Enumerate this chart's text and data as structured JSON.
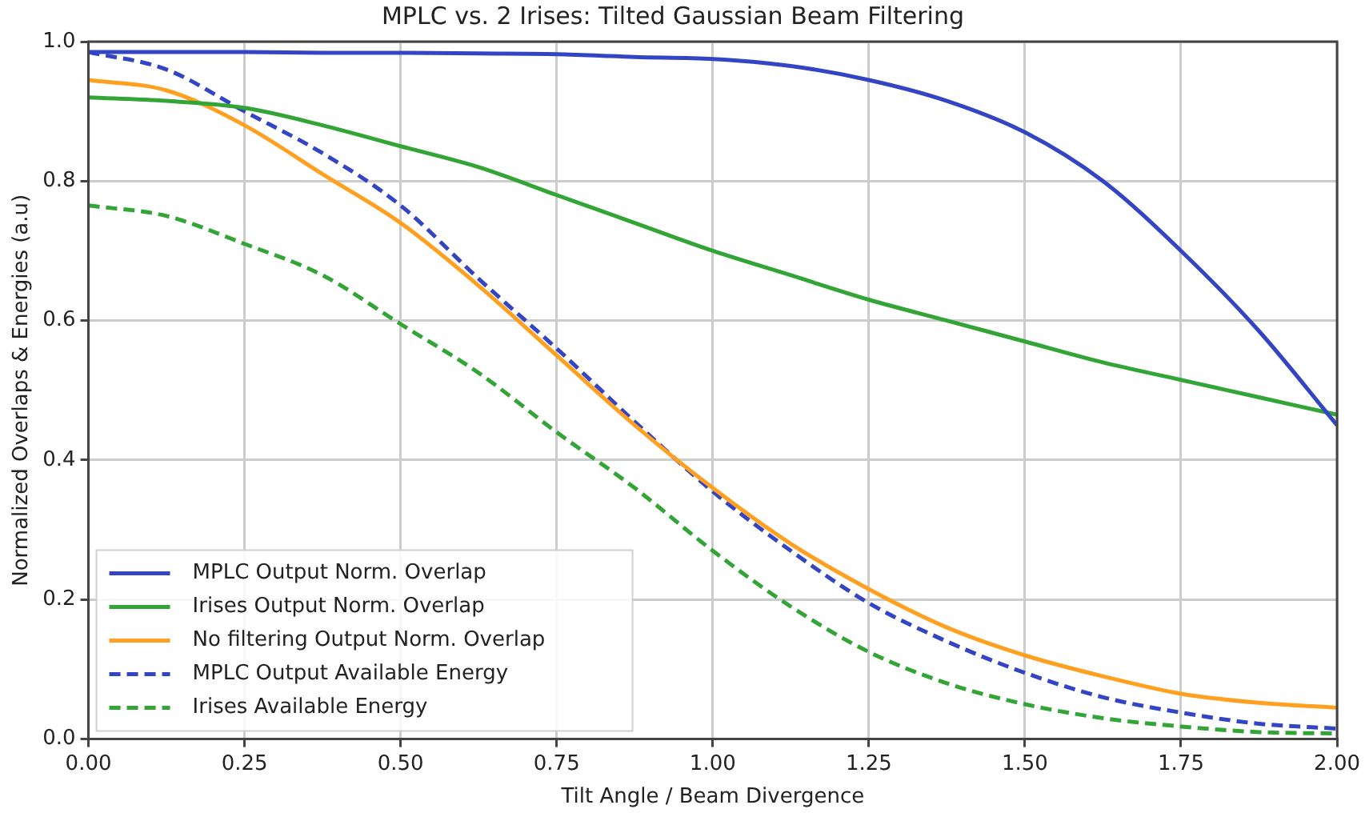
{
  "chart_data": {
    "type": "line",
    "title": "MPLC vs. 2 Irises: Tilted Gaussian Beam Filtering",
    "xlabel": "Tilt Angle / Beam Divergence",
    "ylabel": "Normalized Overlaps & Energies (a.u)",
    "x": [
      0,
      0.125,
      0.25,
      0.375,
      0.5,
      0.625,
      0.75,
      0.875,
      1.0,
      1.125,
      1.25,
      1.375,
      1.5,
      1.625,
      1.75,
      1.875,
      2.0
    ],
    "series": [
      {
        "name": "MPLC Output Norm. Overlap",
        "color": "#3344c4",
        "line_style": "solid",
        "values": [
          0.985,
          0.985,
          0.985,
          0.984,
          0.984,
          0.983,
          0.982,
          0.978,
          0.975,
          0.965,
          0.945,
          0.915,
          0.87,
          0.8,
          0.7,
          0.585,
          0.45
        ]
      },
      {
        "name": "Irises Output Norm. Overlap",
        "color": "#33a537",
        "line_style": "solid",
        "values": [
          0.92,
          0.915,
          0.905,
          0.88,
          0.85,
          0.82,
          0.78,
          0.74,
          0.7,
          0.665,
          0.63,
          0.6,
          0.57,
          0.54,
          0.515,
          0.49,
          0.465
        ]
      },
      {
        "name": "No filtering Output Norm. Overlap",
        "color": "#ffa020",
        "line_style": "solid",
        "values": [
          0.945,
          0.93,
          0.88,
          0.81,
          0.74,
          0.65,
          0.55,
          0.45,
          0.36,
          0.28,
          0.215,
          0.16,
          0.12,
          0.09,
          0.065,
          0.052,
          0.045
        ]
      },
      {
        "name": "MPLC Output Available Energy",
        "color": "#3344c4",
        "line_style": "dashed",
        "values": [
          0.985,
          0.96,
          0.9,
          0.84,
          0.765,
          0.66,
          0.56,
          0.455,
          0.355,
          0.27,
          0.195,
          0.14,
          0.095,
          0.06,
          0.038,
          0.022,
          0.015
        ]
      },
      {
        "name": "Irises Available Energy",
        "color": "#33a537",
        "line_style": "dashed",
        "values": [
          0.765,
          0.75,
          0.71,
          0.665,
          0.595,
          0.525,
          0.44,
          0.36,
          0.27,
          0.19,
          0.125,
          0.08,
          0.05,
          0.03,
          0.018,
          0.01,
          0.008
        ]
      }
    ],
    "xlim": [
      0,
      2
    ],
    "xticks": [
      {
        "value": 0,
        "label": "0.00"
      },
      {
        "value": 0.25,
        "label": "0.25"
      },
      {
        "value": 0.5,
        "label": "0.50"
      },
      {
        "value": 0.75,
        "label": "0.75"
      },
      {
        "value": 1,
        "label": "1.00"
      },
      {
        "value": 1.25,
        "label": "1.25"
      },
      {
        "value": 1.5,
        "label": "1.50"
      },
      {
        "value": 1.75,
        "label": "1.75"
      },
      {
        "value": 2,
        "label": "2.00"
      }
    ],
    "ylim": [
      0,
      1
    ],
    "yticks": [
      {
        "value": 0,
        "label": "0.0"
      },
      {
        "value": 0.2,
        "label": "0.2"
      },
      {
        "value": 0.4,
        "label": "0.4"
      },
      {
        "value": 0.6,
        "label": "0.6"
      },
      {
        "value": 0.8,
        "label": "0.8"
      },
      {
        "value": 1,
        "label": "1.0"
      }
    ],
    "grid": true,
    "legend": "bottom left",
    "marker": "none"
  }
}
